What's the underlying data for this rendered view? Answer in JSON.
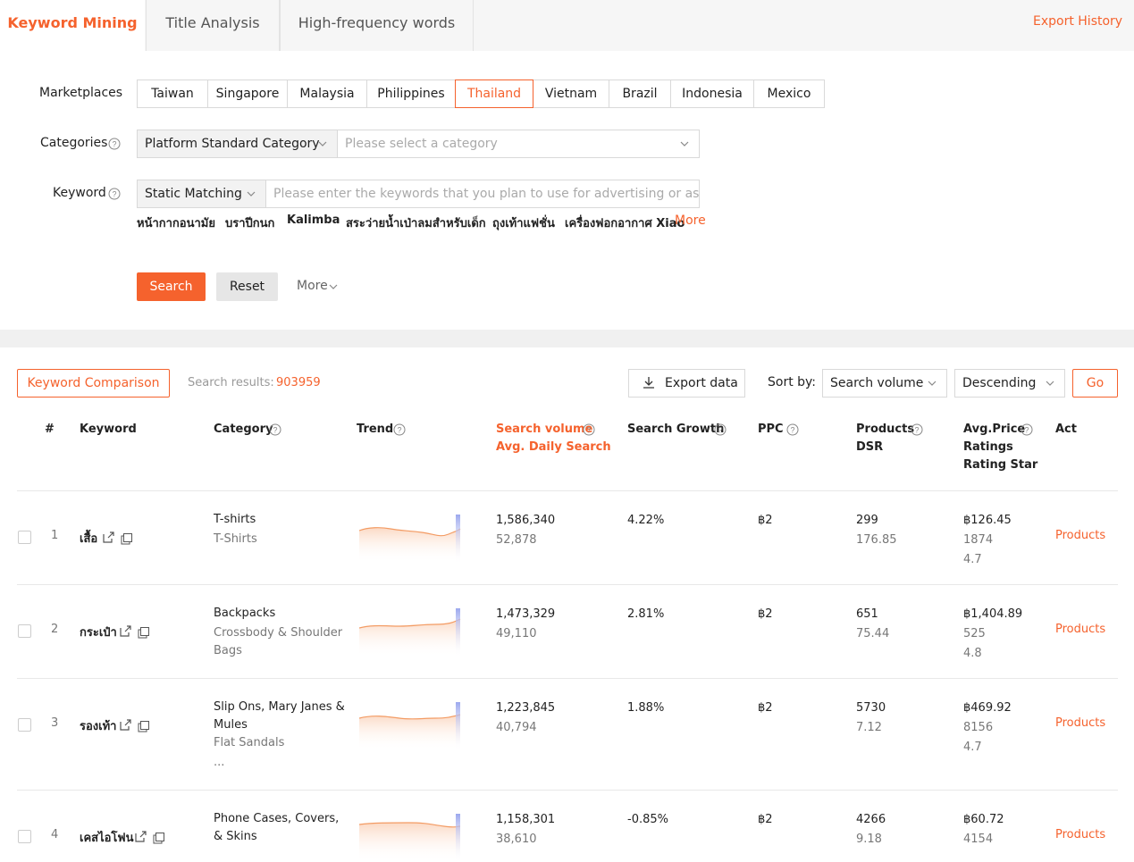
{
  "tabs": [
    "Keyword Mining",
    "Title Analysis",
    "High-frequency words"
  ],
  "export_history": "Export History",
  "filters": {
    "marketplaces_label": "Marketplaces",
    "marketplaces": [
      "Taiwan",
      "Singapore",
      "Malaysia",
      "Philippines",
      "Thailand",
      "Vietnam",
      "Brazil",
      "Indonesia",
      "Mexico"
    ],
    "selected_marketplace": "Thailand",
    "categories_label": "Categories",
    "category_type": "Platform Standard Category",
    "category_placeholder": "Please select a category",
    "keyword_label": "Keyword",
    "match_type": "Static Matching",
    "keyword_placeholder": "Please enter the keywords that you plan to use for advertising or as ...",
    "suggestions": [
      "หน้ากากอนามัย",
      "บราปีกนก",
      "Kalimba",
      "สระว่ายน้ำเป่าลมสำหรับเด็ก",
      "ถุงเท้าแฟชั่น",
      "เครื่องฟอกอากาศ Xiao"
    ],
    "suggestions_more": "More",
    "search": "Search",
    "reset": "Reset",
    "more": "More"
  },
  "toolbar": {
    "compare": "Keyword Comparison",
    "results_label": "Search results:",
    "results_count": "903959",
    "export": "Export data",
    "sort_label": "Sort by:",
    "sort_field": "Search volume",
    "sort_order": "Descending",
    "go": "Go"
  },
  "table": {
    "headers": [
      [
        "#"
      ],
      [
        "Keyword"
      ],
      [
        "Category"
      ],
      [
        "Trend"
      ],
      [
        "Search volume",
        "Avg. Daily Search"
      ],
      [
        "Search Growth"
      ],
      [
        "PPC"
      ],
      [
        "Products",
        "DSR"
      ],
      [
        "Avg.Price",
        "Ratings",
        "Rating Star"
      ],
      [
        "Act"
      ]
    ],
    "rows": [
      {
        "index": "1",
        "keyword": "เสื้อ",
        "category": [
          "T-shirts",
          "T-Shirts"
        ],
        "volume": "1,586,340",
        "daily": "52,878",
        "growth": "4.22%",
        "ppc": "฿2",
        "products": "299",
        "dsr": "176.85",
        "price": "฿126.45",
        "ratings": "1874",
        "star": "4.7",
        "action": "Products"
      },
      {
        "index": "2",
        "keyword": "กระเป๋า",
        "category": [
          "Backpacks",
          "Crossbody & Shoulder Bags"
        ],
        "volume": "1,473,329",
        "daily": "49,110",
        "growth": "2.81%",
        "ppc": "฿2",
        "products": "651",
        "dsr": "75.44",
        "price": "฿1,404.89",
        "ratings": "525",
        "star": "4.8",
        "action": "Products"
      },
      {
        "index": "3",
        "keyword": "รองเท้า",
        "category": [
          "Slip Ons, Mary Janes & Mules",
          "Flat Sandals",
          "..."
        ],
        "volume": "1,223,845",
        "daily": "40,794",
        "growth": "1.88%",
        "ppc": "฿2",
        "products": "5730",
        "dsr": "7.12",
        "price": "฿469.92",
        "ratings": "8156",
        "star": "4.7",
        "action": "Products"
      },
      {
        "index": "4",
        "keyword": "เคสไอโฟน",
        "category": [
          "Phone Cases, Covers, & Skins"
        ],
        "volume": "1,158,301",
        "daily": "38,610",
        "growth": "-0.85%",
        "ppc": "฿2",
        "products": "4266",
        "dsr": "9.18",
        "price": "฿60.72",
        "ratings": "4154",
        "action": "Products"
      }
    ]
  }
}
